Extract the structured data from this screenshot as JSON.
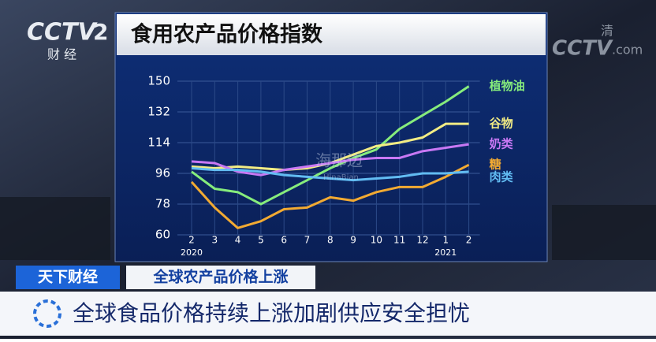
{
  "chart_data": {
    "type": "line",
    "title": "食用农产品价格指数",
    "categories": [
      "2",
      "3",
      "4",
      "5",
      "6",
      "7",
      "8",
      "9",
      "10",
      "11",
      "12",
      "1",
      "2"
    ],
    "category_years": [
      "2020",
      null,
      null,
      null,
      null,
      null,
      null,
      null,
      null,
      null,
      null,
      "2021",
      null
    ],
    "ylim": [
      60,
      150
    ],
    "yticks": [
      60,
      78,
      96,
      114,
      132,
      150
    ],
    "grid": true,
    "series": [
      {
        "name": "植物油",
        "color": "#86ec7c",
        "values": [
          97,
          87,
          85,
          78,
          85,
          92,
          99,
          105,
          110,
          122,
          130,
          138,
          147
        ]
      },
      {
        "name": "谷物",
        "color": "#f2ec84",
        "values": [
          100,
          99,
          100,
          99,
          98,
          99,
          102,
          107,
          112,
          114,
          117,
          125,
          125
        ]
      },
      {
        "name": "奶类",
        "color": "#c878f4",
        "values": [
          103,
          102,
          97,
          95,
          98,
          100,
          102,
          104,
          105,
          105,
          109,
          111,
          113
        ]
      },
      {
        "name": "糖",
        "color": "#f2aa32",
        "values": [
          91,
          76,
          64,
          68,
          75,
          76,
          82,
          80,
          85,
          88,
          88,
          94,
          101
        ]
      },
      {
        "name": "肉类",
        "color": "#62bcf2",
        "values": [
          99,
          98,
          98,
          97,
          95,
          94,
          93,
          92,
          93,
          94,
          96,
          96,
          97
        ]
      }
    ]
  },
  "broadcast": {
    "channel_logo": "CCTV",
    "channel_number": "2",
    "channel_name": "财 经",
    "corner_logo": "CCTV",
    "corner_tag": "清",
    "corner_suffix": ".com",
    "watermark": "海那边",
    "watermark_sub": "HinaBian",
    "program": "天下财经",
    "topic": "全球农产品价格上涨",
    "headline": "全球食品价格持续上涨加剧供应安全担忧"
  }
}
